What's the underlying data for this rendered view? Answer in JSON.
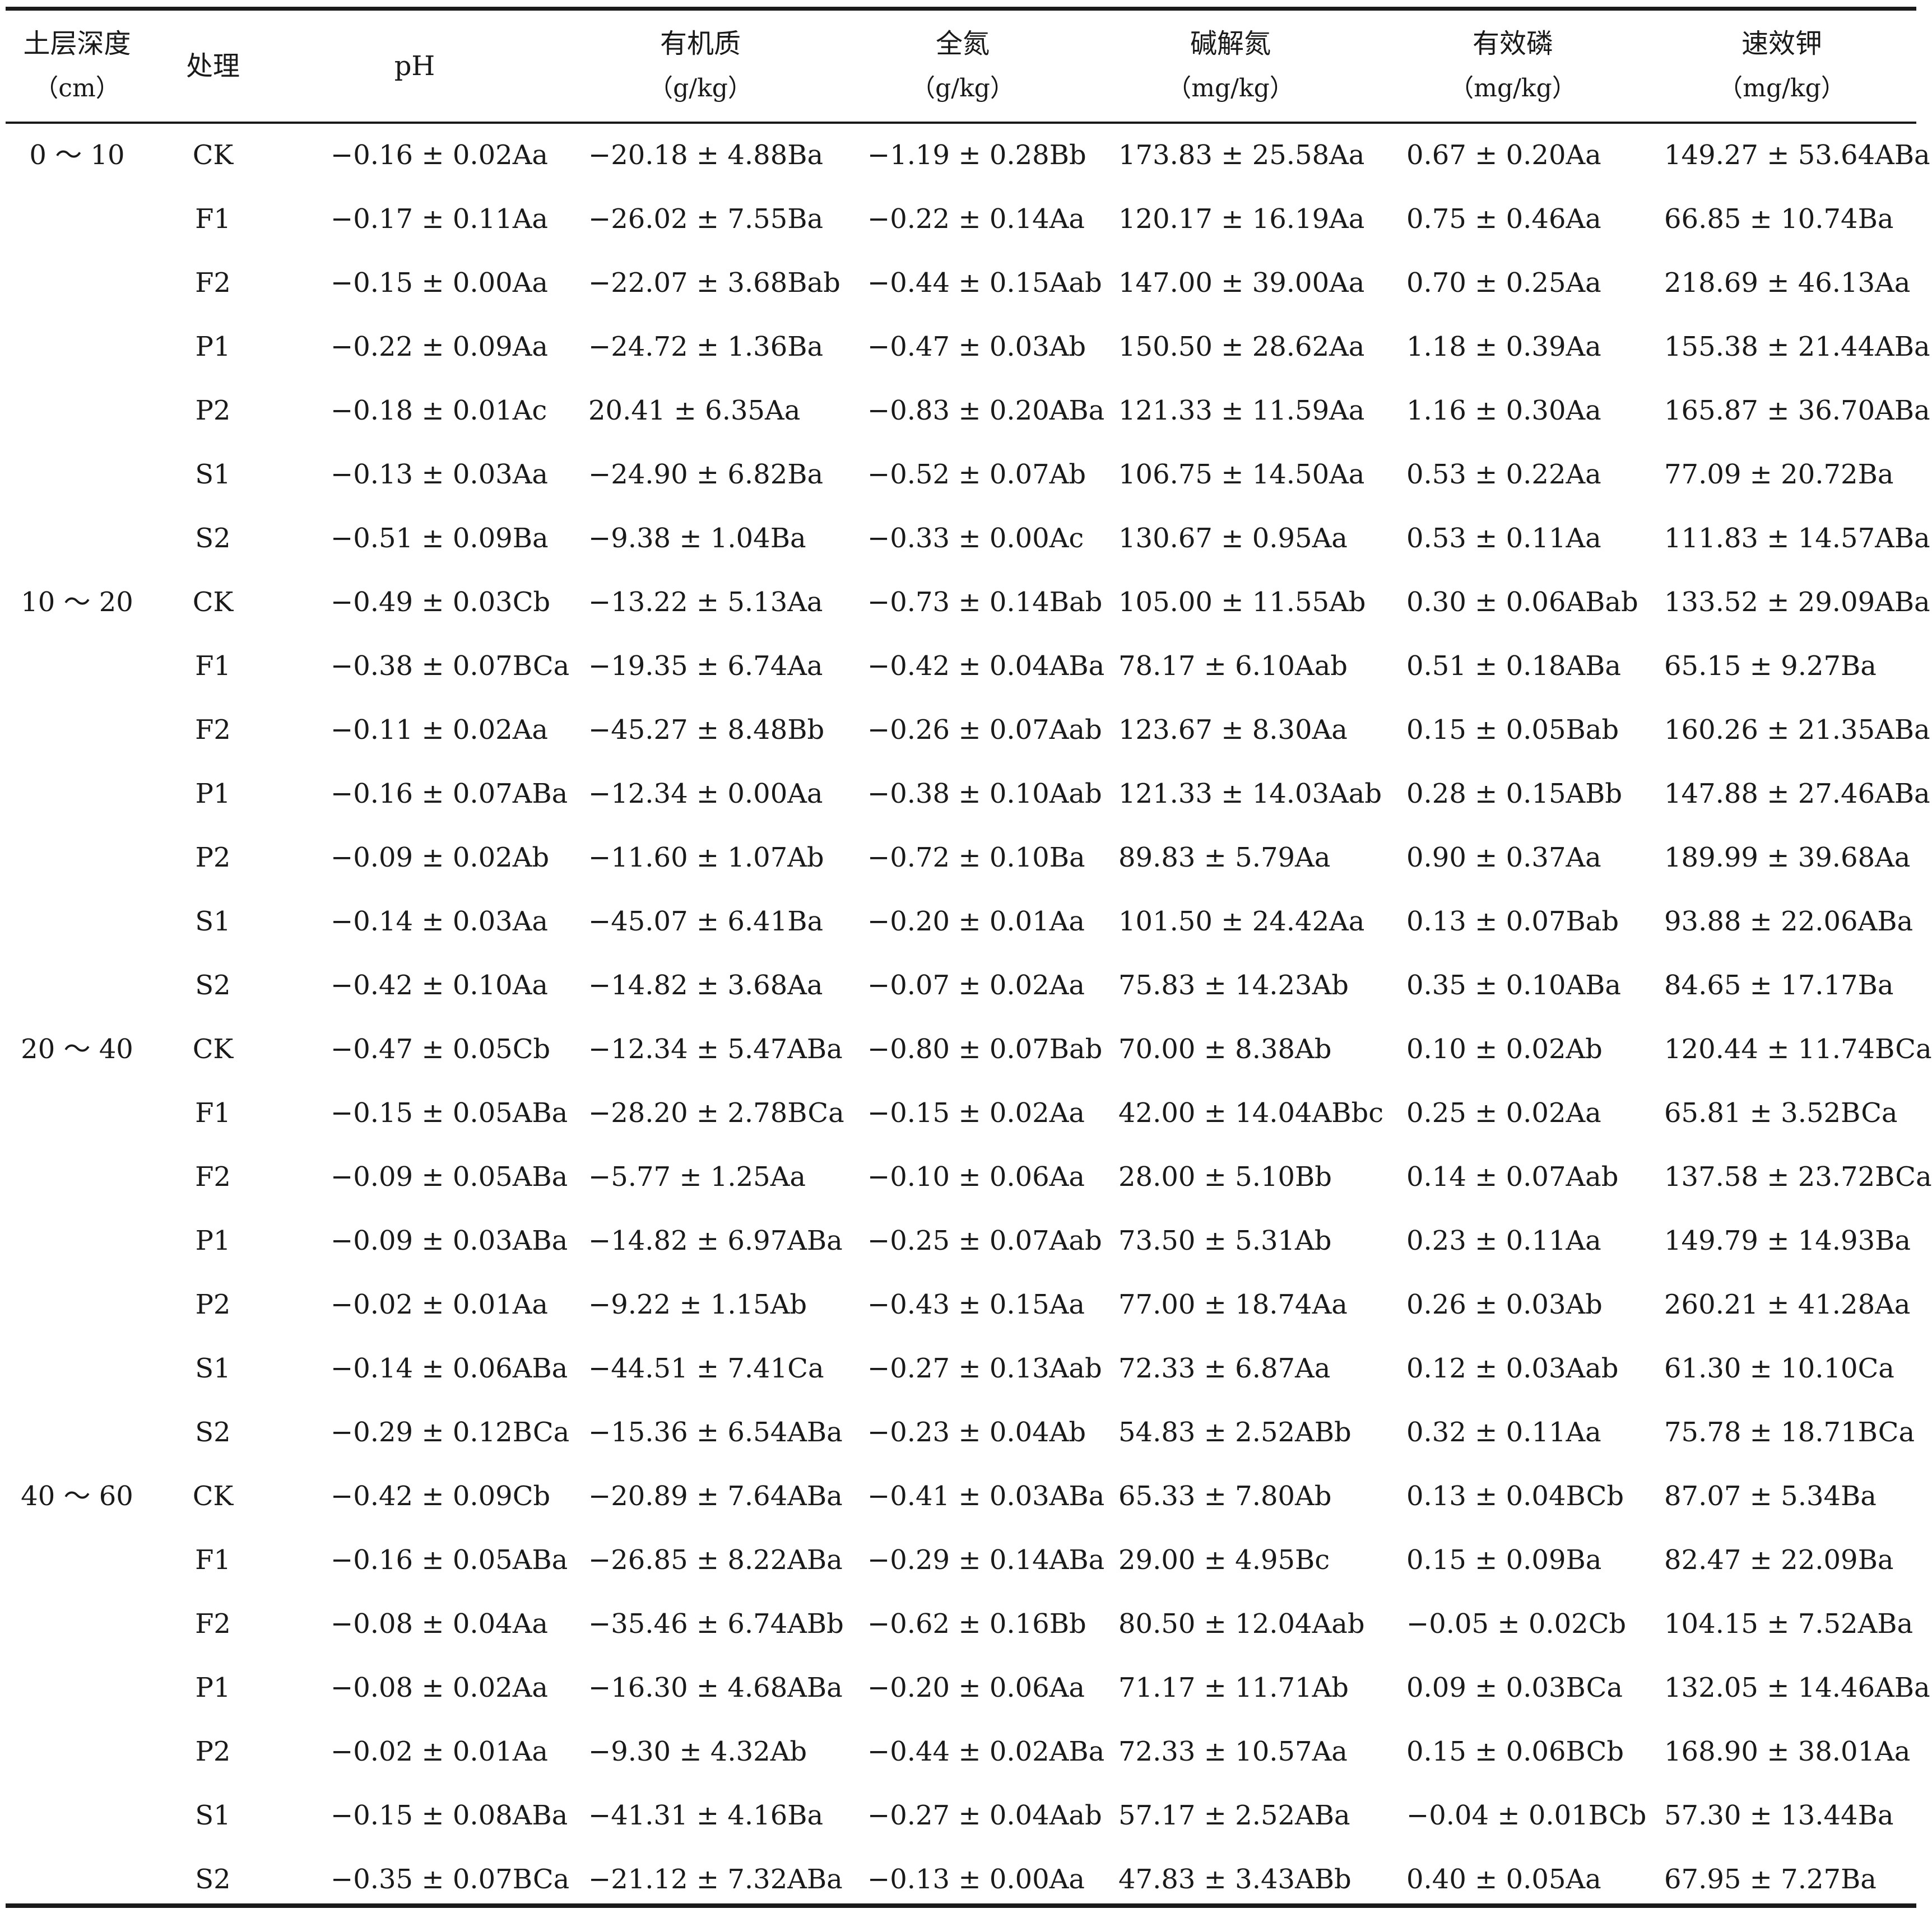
{
  "table": {
    "headers": [
      {
        "line1": "土层深度",
        "line2": "（cm）"
      },
      {
        "line1": "处理",
        "line2": ""
      },
      {
        "line1": "pH",
        "line2": ""
      },
      {
        "line1": "有机质",
        "line2": "（g/kg）"
      },
      {
        "line1": "全氮",
        "line2": "（g/kg）"
      },
      {
        "line1": "碱解氮",
        "line2": "（mg/kg）"
      },
      {
        "line1": "有效磷",
        "line2": "（mg/kg）"
      },
      {
        "line1": "速效钾",
        "line2": "（mg/kg）"
      }
    ],
    "rows": [
      [
        "0 ～ 10",
        "CK",
        "−0.16 ± 0.02Aa",
        "−20.18 ± 4.88Ba",
        "−1.19 ± 0.28Bb",
        "173.83 ± 25.58Aa",
        "0.67 ± 0.20Aa",
        "149.27 ± 53.64ABa"
      ],
      [
        "",
        "F1",
        "−0.17 ± 0.11Aa",
        "−26.02 ± 7.55Ba",
        "−0.22 ± 0.14Aa",
        "120.17 ± 16.19Aa",
        "0.75 ± 0.46Aa",
        "66.85 ± 10.74Ba"
      ],
      [
        "",
        "F2",
        "−0.15 ± 0.00Aa",
        "−22.07 ± 3.68Bab",
        "−0.44 ± 0.15Aab",
        "147.00 ± 39.00Aa",
        "0.70 ± 0.25Aa",
        "218.69 ± 46.13Aa"
      ],
      [
        "",
        "P1",
        "−0.22 ± 0.09Aa",
        "−24.72 ± 1.36Ba",
        "−0.47 ± 0.03Ab",
        "150.50 ± 28.62Aa",
        "1.18 ± 0.39Aa",
        "155.38 ± 21.44ABa"
      ],
      [
        "",
        "P2",
        "−0.18 ± 0.01Ac",
        "20.41 ± 6.35Aa",
        "−0.83 ± 0.20ABa",
        "121.33 ± 11.59Aa",
        "1.16 ± 0.30Aa",
        "165.87 ± 36.70ABa"
      ],
      [
        "",
        "S1",
        "−0.13 ± 0.03Aa",
        "−24.90 ± 6.82Ba",
        "−0.52 ± 0.07Ab",
        "106.75 ± 14.50Aa",
        "0.53 ± 0.22Aa",
        "77.09 ± 20.72Ba"
      ],
      [
        "",
        "S2",
        "−0.51 ± 0.09Ba",
        "−9.38 ± 1.04Ba",
        "−0.33 ± 0.00Ac",
        "130.67 ± 0.95Aa",
        "0.53 ± 0.11Aa",
        "111.83 ± 14.57ABa"
      ],
      [
        "10 ～ 20",
        "CK",
        "−0.49 ± 0.03Cb",
        "−13.22 ± 5.13Aa",
        "−0.73 ± 0.14Bab",
        "105.00 ± 11.55Ab",
        "0.30 ± 0.06ABab",
        "133.52 ± 29.09ABa"
      ],
      [
        "",
        "F1",
        "−0.38 ± 0.07BCa",
        "−19.35 ± 6.74Aa",
        "−0.42 ± 0.04ABa",
        "78.17 ± 6.10Aab",
        "0.51 ± 0.18ABa",
        "65.15 ± 9.27Ba"
      ],
      [
        "",
        "F2",
        "−0.11 ± 0.02Aa",
        "−45.27 ± 8.48Bb",
        "−0.26 ± 0.07Aab",
        "123.67 ± 8.30Aa",
        "0.15 ± 0.05Bab",
        "160.26 ± 21.35ABa"
      ],
      [
        "",
        "P1",
        "−0.16 ± 0.07ABa",
        "−12.34 ± 0.00Aa",
        "−0.38 ± 0.10Aab",
        "121.33 ± 14.03Aab",
        "0.28 ± 0.15ABb",
        "147.88 ± 27.46ABa"
      ],
      [
        "",
        "P2",
        "−0.09 ± 0.02Ab",
        "−11.60 ± 1.07Ab",
        "−0.72 ± 0.10Ba",
        "89.83 ± 5.79Aa",
        "0.90 ± 0.37Aa",
        "189.99 ± 39.68Aa"
      ],
      [
        "",
        "S1",
        "−0.14 ± 0.03Aa",
        "−45.07 ± 6.41Ba",
        "−0.20 ± 0.01Aa",
        "101.50 ± 24.42Aa",
        "0.13 ± 0.07Bab",
        "93.88 ± 22.06ABa"
      ],
      [
        "",
        "S2",
        "−0.42 ± 0.10Aa",
        "−14.82 ± 3.68Aa",
        "−0.07 ± 0.02Aa",
        "75.83 ± 14.23Ab",
        "0.35 ± 0.10ABa",
        "84.65 ± 17.17Ba"
      ],
      [
        "20 ～ 40",
        "CK",
        "−0.47 ± 0.05Cb",
        "−12.34 ± 5.47ABa",
        "−0.80 ± 0.07Bab",
        "70.00 ± 8.38Ab",
        "0.10 ± 0.02Ab",
        "120.44 ± 11.74BCa"
      ],
      [
        "",
        "F1",
        "−0.15 ± 0.05ABa",
        "−28.20 ± 2.78BCa",
        "−0.15 ± 0.02Aa",
        "42.00 ± 14.04ABbc",
        "0.25 ± 0.02Aa",
        "65.81 ± 3.52BCa"
      ],
      [
        "",
        "F2",
        "−0.09 ± 0.05ABa",
        "−5.77 ± 1.25Aa",
        "−0.10 ± 0.06Aa",
        "28.00 ± 5.10Bb",
        "0.14 ± 0.07Aab",
        "137.58 ± 23.72BCa"
      ],
      [
        "",
        "P1",
        "−0.09 ± 0.03ABa",
        "−14.82 ± 6.97ABa",
        "−0.25 ± 0.07Aab",
        "73.50 ± 5.31Ab",
        "0.23 ± 0.11Aa",
        "149.79 ± 14.93Ba"
      ],
      [
        "",
        "P2",
        "−0.02 ± 0.01Aa",
        "−9.22 ± 1.15Ab",
        "−0.43 ± 0.15Aa",
        "77.00 ± 18.74Aa",
        "0.26 ± 0.03Ab",
        "260.21 ± 41.28Aa"
      ],
      [
        "",
        "S1",
        "−0.14 ± 0.06ABa",
        "−44.51 ± 7.41Ca",
        "−0.27 ± 0.13Aab",
        "72.33 ± 6.87Aa",
        "0.12 ± 0.03Aab",
        "61.30 ± 10.10Ca"
      ],
      [
        "",
        "S2",
        "−0.29 ± 0.12BCa",
        "−15.36 ± 6.54ABa",
        "−0.23 ± 0.04Ab",
        "54.83 ± 2.52ABb",
        "0.32 ± 0.11Aa",
        "75.78 ± 18.71BCa"
      ],
      [
        "40 ～ 60",
        "CK",
        "−0.42 ± 0.09Cb",
        "−20.89 ± 7.64ABa",
        "−0.41 ± 0.03ABa",
        "65.33 ± 7.80Ab",
        "0.13 ± 0.04BCb",
        "87.07 ± 5.34Ba"
      ],
      [
        "",
        "F1",
        "−0.16 ± 0.05ABa",
        "−26.85 ± 8.22ABa",
        "−0.29 ± 0.14ABa",
        "29.00 ± 4.95Bc",
        "0.15 ± 0.09Ba",
        "82.47 ± 22.09Ba"
      ],
      [
        "",
        "F2",
        "−0.08 ± 0.04Aa",
        "−35.46 ± 6.74ABb",
        "−0.62 ± 0.16Bb",
        "80.50 ± 12.04Aab",
        "−0.05 ± 0.02Cb",
        "104.15 ± 7.52ABa"
      ],
      [
        "",
        "P1",
        "−0.08 ± 0.02Aa",
        "−16.30 ± 4.68ABa",
        "−0.20 ± 0.06Aa",
        "71.17 ± 11.71Ab",
        "0.09 ± 0.03BCa",
        "132.05 ± 14.46ABa"
      ],
      [
        "",
        "P2",
        "−0.02 ± 0.01Aa",
        "−9.30 ± 4.32Ab",
        "−0.44 ± 0.02ABa",
        "72.33 ± 10.57Aa",
        "0.15 ± 0.06BCb",
        "168.90 ± 38.01Aa"
      ],
      [
        "",
        "S1",
        "−0.15 ± 0.08ABa",
        "−41.31 ± 4.16Ba",
        "−0.27 ± 0.04Aab",
        "57.17 ± 2.52ABa",
        "−0.04 ± 0.01BCb",
        "57.30 ± 13.44Ba"
      ],
      [
        "",
        "S2",
        "−0.35 ± 0.07BCa",
        "−21.12 ± 7.32ABa",
        "−0.13 ± 0.00Aa",
        "47.83 ± 3.43ABb",
        "0.40 ± 0.05Aa",
        "67.95 ± 7.27Ba"
      ]
    ]
  }
}
